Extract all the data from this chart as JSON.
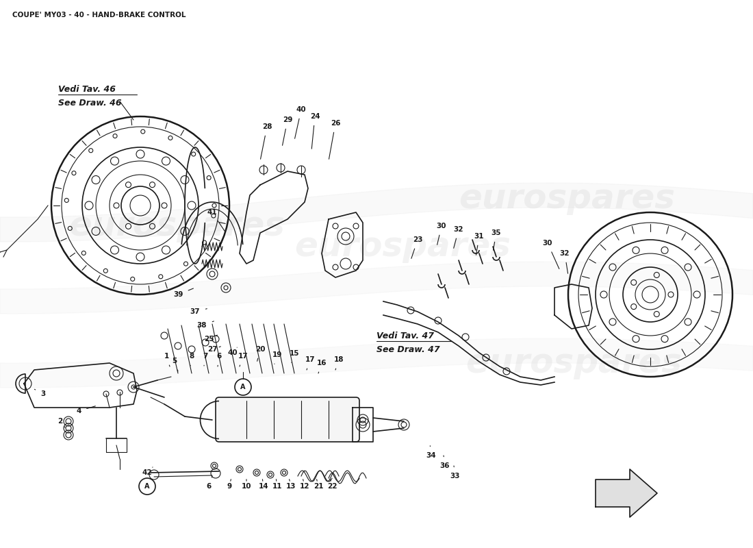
{
  "title": "COUPE' MY03 - 40 - HAND-BRAKE CONTROL",
  "bg_color": "#ffffff",
  "line_color": "#1a1a1a",
  "figsize": [
    11.0,
    8.0
  ],
  "dpi": 100,
  "watermark_text": "eurospares",
  "ref46_line1": "Vedi Tav. 46",
  "ref46_line2": "See Draw. 46",
  "ref47_line1": "Vedi Tav. 47",
  "ref47_line2": "See Draw. 47"
}
